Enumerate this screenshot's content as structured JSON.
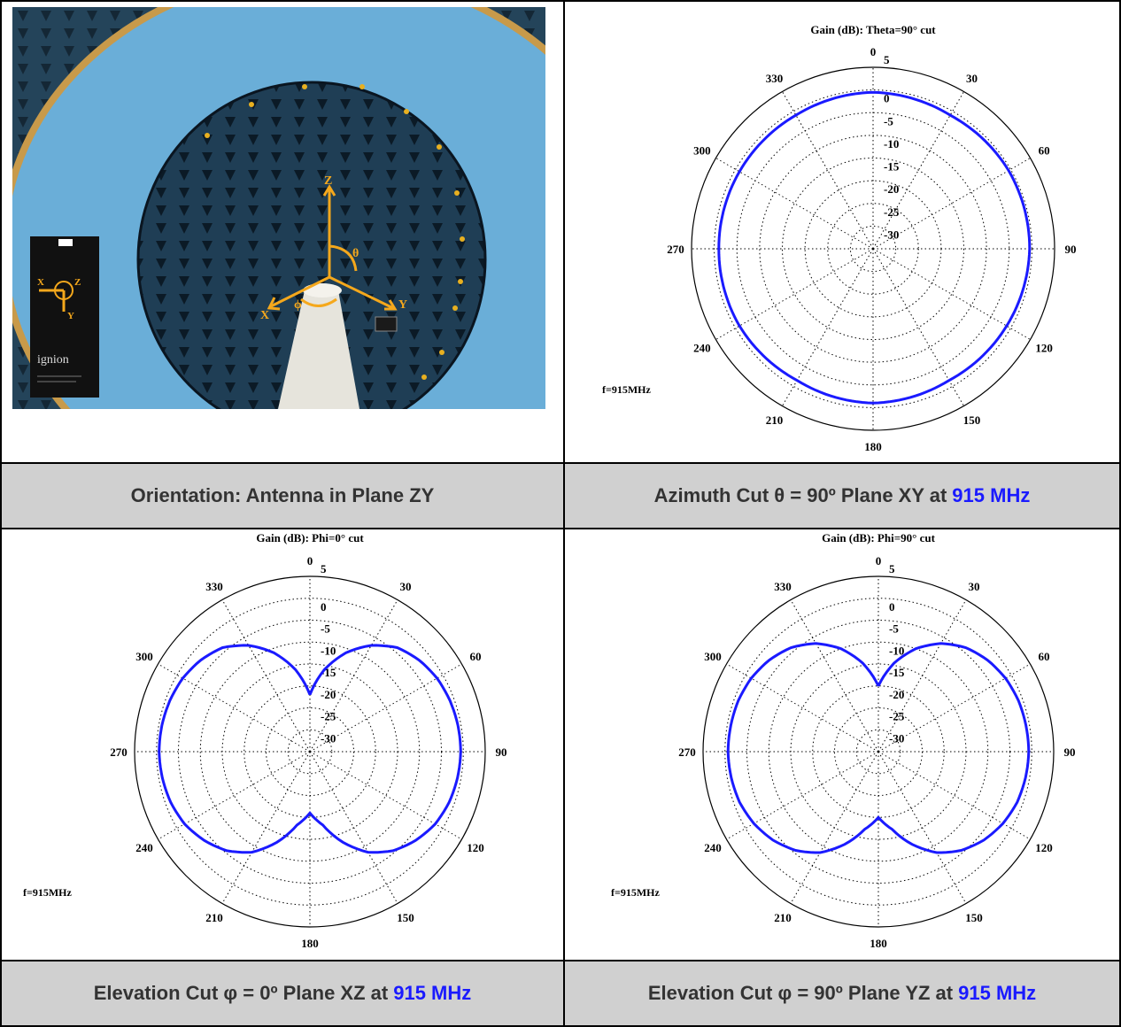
{
  "photo": {
    "axes": {
      "z": "Z",
      "y": "Y",
      "x": "X",
      "theta": "θ",
      "phi": "ϕ"
    },
    "board": {
      "brand": "ignion",
      "axis_x": "X",
      "axis_y": "Y",
      "axis_z": "Z"
    }
  },
  "captions": {
    "top_left": "Orientation: Antenna in Plane ZY",
    "top_right": "Azimuth Cut θ = 90º Plane XY at",
    "bottom_left": "Elevation Cut φ = 0º Plane XZ at",
    "bottom_right": "Elevation Cut φ = 90º  Plane YZ at",
    "freq": "915 MHz"
  },
  "colors": {
    "trace": "#1a1aff",
    "caption_bg": "#d0d0d0",
    "freq_text": "#1a1aff"
  },
  "chart_data": [
    {
      "type": "polar",
      "title": "Gain (dB): Theta=90° cut",
      "freq_label": "f=915MHz",
      "radial_ticks": [
        "5",
        "0",
        "-5",
        "-10",
        "-15",
        "-20",
        "-25",
        "-30"
      ],
      "angle_labels": [
        "0",
        "30",
        "60",
        "90",
        "120",
        "150",
        "180",
        "210",
        "240",
        "270",
        "300",
        "330"
      ],
      "rlim": [
        -35,
        5
      ],
      "grid": true,
      "series": [
        {
          "angles": [
            0,
            30,
            60,
            90,
            120,
            150,
            180,
            210,
            240,
            270,
            300,
            330,
            360
          ],
          "values": [
            -0.5,
            -1.0,
            -0.5,
            -0.5,
            -1.0,
            -1.5,
            -1.0,
            -1.5,
            -1.0,
            -1.0,
            -1.0,
            -1.0,
            -0.5
          ]
        }
      ]
    },
    {
      "type": "polar",
      "title": "Gain (dB): Phi=0° cut",
      "freq_label": "f=915MHz",
      "radial_ticks": [
        "5",
        "0",
        "-5",
        "-10",
        "-15",
        "-20",
        "-25",
        "-30"
      ],
      "angle_labels": [
        "0",
        "30",
        "60",
        "90",
        "120",
        "150",
        "180",
        "210",
        "240",
        "270",
        "300",
        "330"
      ],
      "rlim": [
        -35,
        5
      ],
      "grid": true,
      "series": [
        {
          "angles": [
            0,
            10,
            20,
            30,
            40,
            50,
            60,
            70,
            80,
            90,
            100,
            110,
            120,
            130,
            140,
            150,
            160,
            170,
            180,
            190,
            200,
            210,
            220,
            230,
            240,
            250,
            260,
            270,
            280,
            290,
            300,
            310,
            320,
            330,
            340,
            350,
            360
          ],
          "values": [
            -22,
            -16,
            -11,
            -7,
            -4,
            -2.5,
            -1.5,
            -1,
            -0.7,
            -0.6,
            -0.8,
            -1.2,
            -2,
            -3.5,
            -5.5,
            -8.5,
            -13,
            -18,
            -21,
            -18,
            -13,
            -8.5,
            -5.5,
            -3.5,
            -2,
            -1.2,
            -0.8,
            -0.6,
            -0.7,
            -1,
            -1.5,
            -2.5,
            -4,
            -7,
            -11,
            -16,
            -22
          ]
        }
      ]
    },
    {
      "type": "polar",
      "title": "Gain (dB): Phi=90° cut",
      "freq_label": "f=915MHz",
      "radial_ticks": [
        "5",
        "0",
        "-5",
        "-10",
        "-15",
        "-20",
        "-25",
        "-30"
      ],
      "angle_labels": [
        "0",
        "30",
        "60",
        "90",
        "120",
        "150",
        "180",
        "210",
        "240",
        "270",
        "300",
        "330"
      ],
      "rlim": [
        -35,
        5
      ],
      "grid": true,
      "series": [
        {
          "angles": [
            0,
            10,
            20,
            30,
            40,
            50,
            60,
            70,
            80,
            90,
            100,
            110,
            120,
            130,
            140,
            150,
            160,
            170,
            180,
            190,
            200,
            210,
            220,
            230,
            240,
            250,
            260,
            270,
            280,
            290,
            300,
            310,
            320,
            330,
            340,
            350,
            360
          ],
          "values": [
            -20,
            -14.5,
            -10,
            -6.5,
            -4,
            -2.5,
            -1.5,
            -1,
            -0.8,
            -0.7,
            -0.9,
            -1.3,
            -2.2,
            -3.6,
            -5.6,
            -8.4,
            -12.5,
            -17,
            -20,
            -17,
            -12.5,
            -8.4,
            -5.6,
            -3.6,
            -2.2,
            -1.3,
            -0.9,
            -0.7,
            -0.8,
            -1,
            -1.5,
            -2.5,
            -4,
            -6.5,
            -10,
            -14.5,
            -20
          ]
        }
      ]
    }
  ]
}
